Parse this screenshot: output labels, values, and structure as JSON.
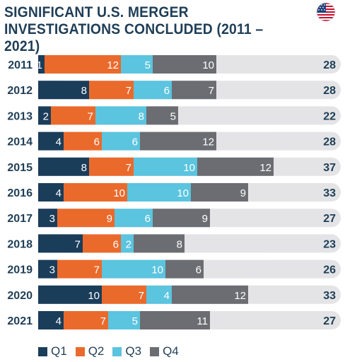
{
  "title_line1": "SIGNIFICANT U.S. MERGER",
  "title_line2": "INVESTIGATIONS CONCLUDED (2011 – 2021)",
  "flag_icon": "us-flag-icon",
  "colors": {
    "q1": "#1a3d5a",
    "q2": "#ea6a2c",
    "q3": "#5bc4df",
    "q4": "#6b6d72",
    "track": "#e4e4e6",
    "text_dark": "#1f3e57"
  },
  "chart_data": {
    "type": "bar",
    "orientation": "horizontal",
    "stacked": true,
    "categories": [
      "2011",
      "2012",
      "2013",
      "2014",
      "2015",
      "2016",
      "2017",
      "2018",
      "2019",
      "2020",
      "2021"
    ],
    "series": [
      {
        "name": "Q1",
        "values": [
          1,
          8,
          2,
          4,
          8,
          4,
          3,
          7,
          3,
          10,
          4
        ]
      },
      {
        "name": "Q2",
        "values": [
          12,
          7,
          7,
          6,
          7,
          10,
          9,
          6,
          7,
          7,
          7
        ]
      },
      {
        "name": "Q3",
        "values": [
          5,
          6,
          8,
          6,
          10,
          10,
          6,
          2,
          10,
          4,
          5
        ]
      },
      {
        "name": "Q4",
        "values": [
          10,
          7,
          5,
          12,
          12,
          9,
          9,
          8,
          6,
          12,
          11
        ]
      }
    ],
    "totals": [
      28,
      28,
      22,
      28,
      37,
      33,
      27,
      23,
      26,
      33,
      27
    ],
    "xlim": [
      0,
      40
    ],
    "legend": "bottom-left",
    "grid": false
  }
}
